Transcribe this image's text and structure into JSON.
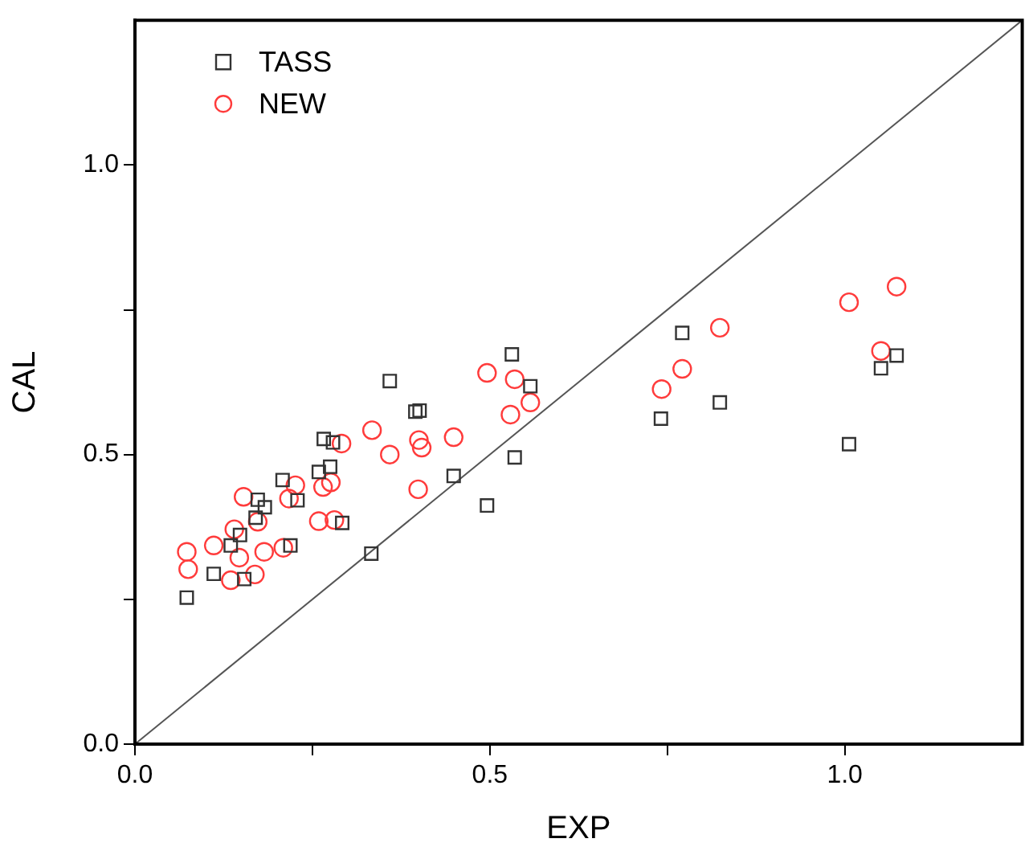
{
  "chart_data": {
    "type": "scatter",
    "xlabel": "EXP",
    "ylabel": "CAL",
    "xlim": [
      0,
      1.25
    ],
    "ylim": [
      0,
      1.25
    ],
    "xticks": [
      {
        "value": 0,
        "label": "0.0"
      },
      {
        "value": 0.25,
        "label": null
      },
      0.5,
      {
        "value": 0.75,
        "label": null
      },
      {
        "value": 1,
        "label": "1.0"
      }
    ],
    "yticks": [
      {
        "value": 0,
        "label": "0.0"
      },
      {
        "value": 0.25,
        "label": null
      },
      0.5,
      {
        "value": 0.75,
        "label": null
      },
      {
        "value": 1,
        "label": "1.0"
      }
    ],
    "grid": false,
    "legend": "top left",
    "series": [
      {
        "name": "TASS",
        "color": "#333333",
        "marker": "square",
        "x": [
          0.073,
          0.111,
          0.154,
          0.135,
          0.148,
          0.17,
          0.173,
          0.183,
          0.208,
          0.229,
          0.219,
          0.259,
          0.275,
          0.292,
          0.266,
          0.279,
          0.333,
          0.401,
          0.395,
          0.449,
          0.496,
          0.359,
          0.531,
          0.557,
          0.535,
          0.771,
          0.741,
          0.824,
          1.006,
          1.051,
          1.073
        ],
        "values": [
          0.253,
          0.294,
          0.285,
          0.343,
          0.361,
          0.391,
          0.422,
          0.409,
          0.456,
          0.421,
          0.343,
          0.47,
          0.479,
          0.382,
          0.527,
          0.521,
          0.329,
          0.576,
          0.574,
          0.463,
          0.412,
          0.627,
          0.673,
          0.618,
          0.495,
          0.71,
          0.562,
          0.59,
          0.518,
          0.649,
          0.671
        ]
      },
      {
        "name": "NEW",
        "color": "#ff3b3b",
        "marker": "circle",
        "x": [
          0.073,
          0.075,
          0.111,
          0.147,
          0.135,
          0.169,
          0.14,
          0.173,
          0.153,
          0.182,
          0.209,
          0.217,
          0.226,
          0.259,
          0.281,
          0.265,
          0.276,
          0.291,
          0.334,
          0.359,
          0.399,
          0.4,
          0.404,
          0.449,
          0.496,
          0.535,
          0.557,
          0.529,
          0.742,
          0.771,
          0.824,
          1.006,
          1.073,
          1.051
        ],
        "values": [
          0.332,
          0.302,
          0.343,
          0.322,
          0.283,
          0.293,
          0.371,
          0.384,
          0.427,
          0.332,
          0.339,
          0.424,
          0.447,
          0.385,
          0.387,
          0.444,
          0.452,
          0.519,
          0.542,
          0.5,
          0.44,
          0.525,
          0.512,
          0.53,
          0.641,
          0.63,
          0.59,
          0.569,
          0.613,
          0.648,
          0.719,
          0.763,
          0.79,
          0.679
        ]
      },
      {
        "type": "line",
        "color": "#555555",
        "marker": "none",
        "x": [
          0,
          1.25
        ],
        "values": [
          0,
          1.25
        ]
      }
    ]
  }
}
